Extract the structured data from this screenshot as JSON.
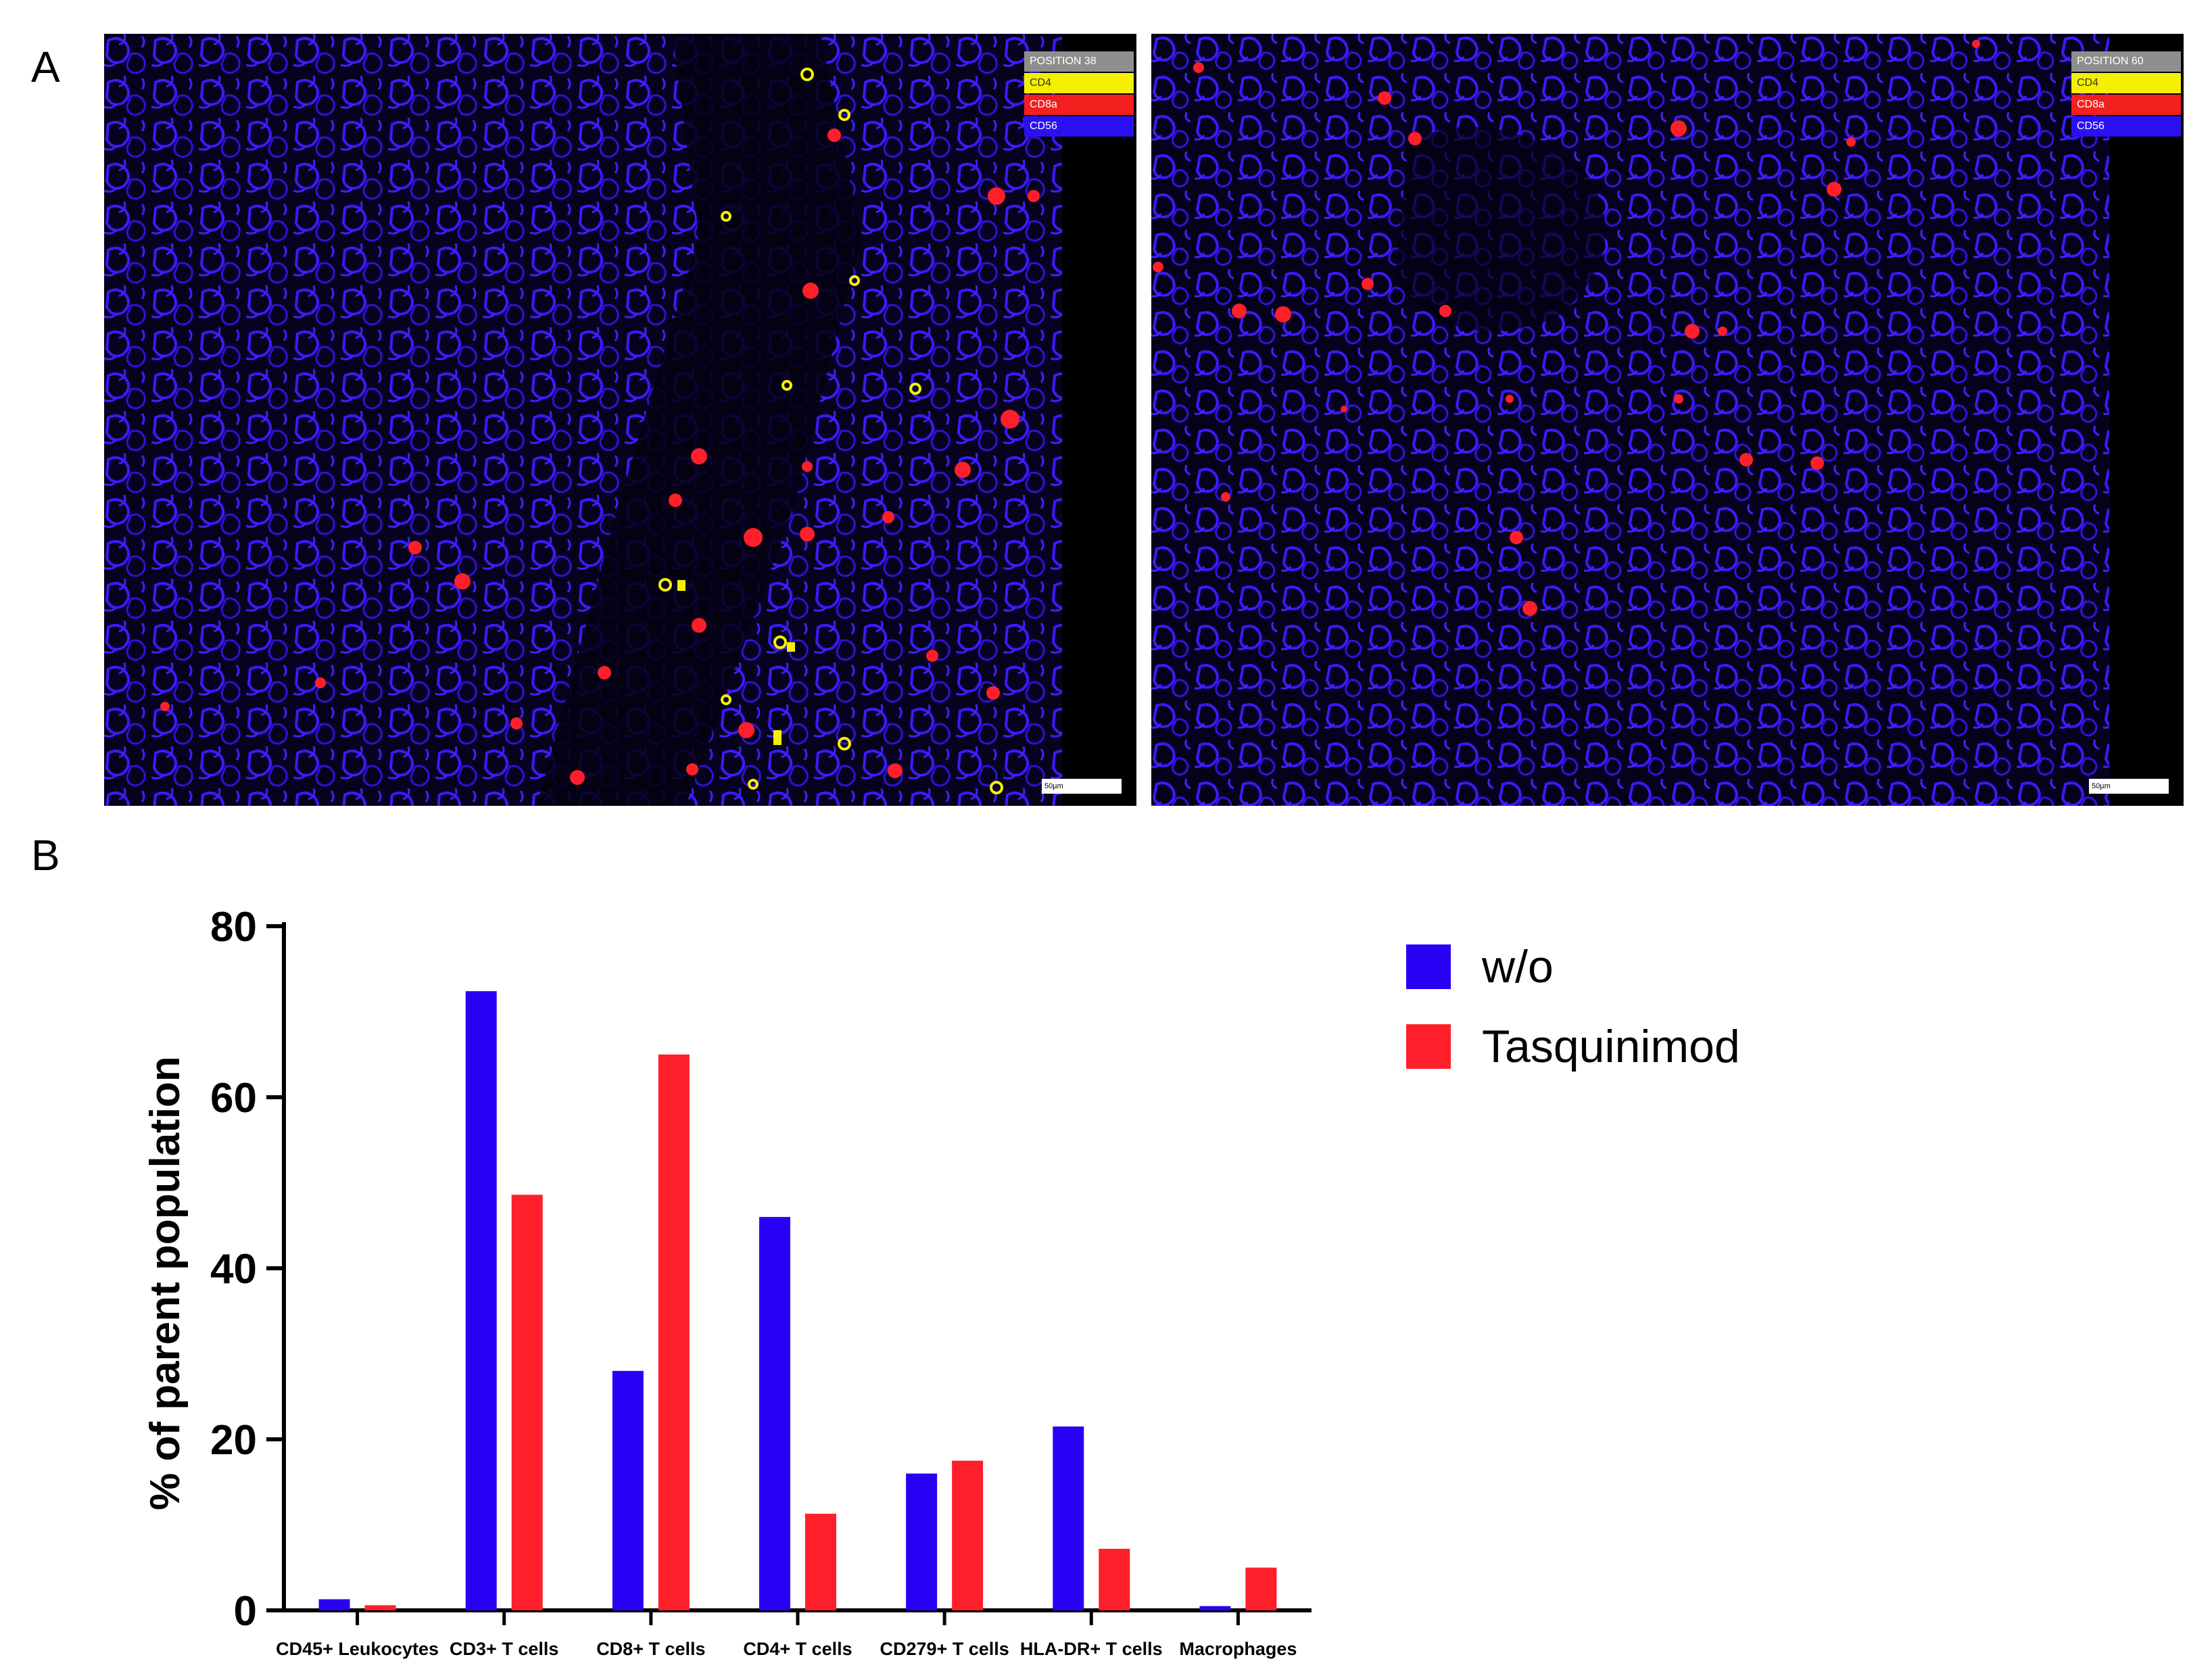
{
  "figure": {
    "panel_a_label": "A",
    "panel_b_label": "B"
  },
  "micrographs": [
    {
      "legend": [
        "POSITION 38",
        "CD4",
        "CD8a",
        "CD56"
      ],
      "scale_label": "50µm"
    },
    {
      "legend": [
        "POSITION 60",
        "CD4",
        "CD8a",
        "CD56"
      ],
      "scale_label": "50µm"
    }
  ],
  "colors": {
    "series_wo": "#2a00f5",
    "series_tasq": "#ff1f2a",
    "tissue_bg": "#05021a",
    "tissue_blue": "#3a1aff",
    "cd4_yellow": "#f4f000",
    "cd8_red": "#ff1f2a"
  },
  "chart_data": {
    "type": "bar",
    "title": "",
    "xlabel": "",
    "ylabel": "% of parent population",
    "ylim": [
      0,
      80
    ],
    "yticks": [
      "0",
      "20",
      "40",
      "60",
      "80"
    ],
    "categories": [
      "CD45+ Leukocytes",
      "CD3+ T cells",
      "CD8+ T cells",
      "CD4+ T cells",
      "CD279+ T cells",
      "HLA-DR+ T cells",
      "Macrophages"
    ],
    "series": [
      {
        "name": "w/o",
        "values": [
          1.3,
          72.4,
          28.0,
          46.0,
          16.0,
          21.5,
          0.5
        ]
      },
      {
        "name": "Tasquinimod",
        "values": [
          0.6,
          48.6,
          65.0,
          11.3,
          17.5,
          7.2,
          5.0
        ]
      }
    ],
    "legend_position": "right"
  }
}
